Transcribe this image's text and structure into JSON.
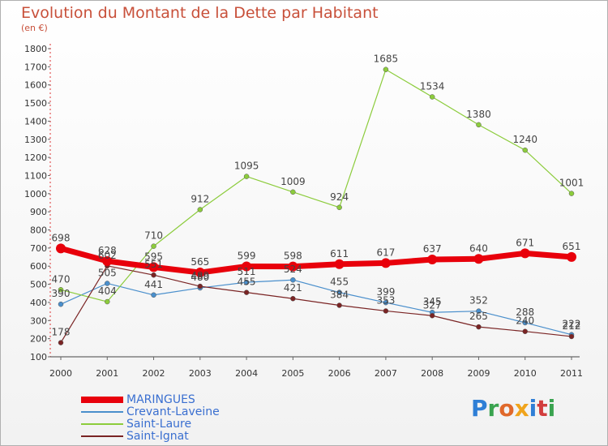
{
  "header": {
    "title": "Evolution du Montant de la Dette par Habitant",
    "subtitle": "(en €)"
  },
  "chart_data": {
    "type": "line",
    "title": "Evolution du Montant de la Dette par Habitant",
    "ylabel": "(en €)",
    "xlabel": "",
    "categories": [
      "2000",
      "2001",
      "2002",
      "2003",
      "2004",
      "2005",
      "2006",
      "2007",
      "2008",
      "2009",
      "2010",
      "2011"
    ],
    "ylim": [
      100,
      1800
    ],
    "yticks": [
      100,
      200,
      300,
      400,
      500,
      600,
      700,
      800,
      900,
      1000,
      1100,
      1200,
      1300,
      1400,
      1500,
      1600,
      1700,
      1800
    ],
    "grid": false,
    "legend_position": "bottom-left",
    "series": [
      {
        "name": "MARINGUES",
        "color": "#e8000b",
        "values": [
          698,
          628,
          595,
          565,
          599,
          598,
          611,
          617,
          637,
          640,
          671,
          651
        ]
      },
      {
        "name": "Crevant-Laveine",
        "color": "#4a8fcc",
        "values": [
          390,
          505,
          441,
          480,
          511,
          524,
          455,
          399,
          345,
          352,
          288,
          222
        ]
      },
      {
        "name": "Saint-Laure",
        "color": "#8ccc3c",
        "values": [
          470,
          404,
          710,
          912,
          1095,
          1009,
          924,
          1685,
          1534,
          1380,
          1240,
          1001
        ]
      },
      {
        "name": "Saint-Ignat",
        "color": "#7a2424",
        "values": [
          178,
          602,
          551,
          489,
          455,
          421,
          384,
          353,
          327,
          265,
          240,
          212
        ]
      }
    ]
  },
  "logo": {
    "letters": [
      "P",
      "r",
      "o",
      "x",
      "i",
      "t",
      "i"
    ]
  }
}
